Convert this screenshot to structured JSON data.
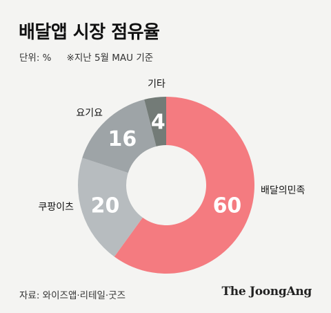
{
  "header": {
    "title": "배달앱 시장 점유율",
    "unit": "단위: %",
    "note": "※지난 5월 MAU 기준"
  },
  "chart_data": {
    "type": "pie",
    "title": "배달앱 시장 점유율",
    "unit": "%",
    "categories": [
      "배달의민족",
      "쿠팡이츠",
      "요기요",
      "기타"
    ],
    "values": [
      60,
      20,
      16,
      4
    ],
    "colors": [
      "#f47b80",
      "#b7bcbf",
      "#9ea4a7",
      "#737b77"
    ],
    "donut": true
  },
  "footer": {
    "source": "자료: 와이즈앱·리테일·굿즈",
    "brand": "The JoongAng"
  }
}
